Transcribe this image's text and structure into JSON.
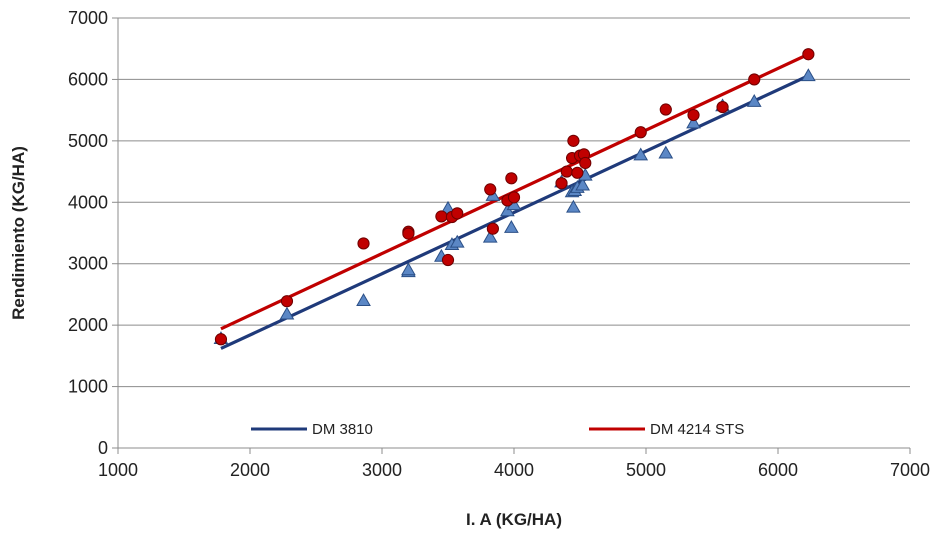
{
  "chart_data": {
    "type": "scatter",
    "title": "",
    "xlabel": "I. A (KG/HA)",
    "ylabel": "Rendimiento (KG/HA)",
    "xlim": [
      1000,
      7000
    ],
    "ylim": [
      0,
      7000
    ],
    "x_ticks": [
      "1000",
      "2000",
      "3000",
      "4000",
      "5000",
      "6000",
      "7000"
    ],
    "y_ticks": [
      "0",
      "1000",
      "2000",
      "3000",
      "4000",
      "5000",
      "6000",
      "7000"
    ],
    "grid": "horizontal",
    "legend_placement": "bottom",
    "series": [
      {
        "name": "DM 3810",
        "marker": "triangle",
        "marker_color": "#5b87c5",
        "line_color": "#1f3a7a",
        "trendline": {
          "x": [
            1780,
            6230
          ],
          "y": [
            1620,
            6060
          ]
        },
        "points": [
          [
            1780,
            1780
          ],
          [
            2280,
            2180
          ],
          [
            2860,
            2400
          ],
          [
            3200,
            2870
          ],
          [
            3200,
            2900
          ],
          [
            3450,
            3120
          ],
          [
            3500,
            3900
          ],
          [
            3530,
            3310
          ],
          [
            3570,
            3350
          ],
          [
            3820,
            3430
          ],
          [
            3840,
            4110
          ],
          [
            3950,
            3860
          ],
          [
            3980,
            3590
          ],
          [
            4000,
            3960
          ],
          [
            4360,
            4330
          ],
          [
            4440,
            4170
          ],
          [
            4450,
            3920
          ],
          [
            4460,
            4190
          ],
          [
            4480,
            4240
          ],
          [
            4520,
            4280
          ],
          [
            4540,
            4440
          ],
          [
            4960,
            4770
          ],
          [
            5150,
            4800
          ],
          [
            5360,
            5290
          ],
          [
            5580,
            5570
          ],
          [
            5820,
            5640
          ],
          [
            6230,
            6060
          ]
        ]
      },
      {
        "name": "DM 4214 STS",
        "marker": "circle",
        "marker_color": "#c00000",
        "line_color": "#c00000",
        "trendline": {
          "x": [
            1780,
            6230
          ],
          "y": [
            1940,
            6410
          ]
        },
        "points": [
          [
            1780,
            1770
          ],
          [
            2280,
            2390
          ],
          [
            2860,
            3330
          ],
          [
            3200,
            3520
          ],
          [
            3200,
            3490
          ],
          [
            3450,
            3770
          ],
          [
            3500,
            3060
          ],
          [
            3530,
            3760
          ],
          [
            3570,
            3820
          ],
          [
            3820,
            4210
          ],
          [
            3840,
            3570
          ],
          [
            3950,
            4030
          ],
          [
            3980,
            4390
          ],
          [
            4000,
            4080
          ],
          [
            4360,
            4310
          ],
          [
            4400,
            4500
          ],
          [
            4440,
            4720
          ],
          [
            4450,
            5000
          ],
          [
            4480,
            4480
          ],
          [
            4500,
            4760
          ],
          [
            4530,
            4780
          ],
          [
            4540,
            4640
          ],
          [
            4960,
            5140
          ],
          [
            5150,
            5510
          ],
          [
            5360,
            5420
          ],
          [
            5580,
            5550
          ],
          [
            5820,
            6000
          ],
          [
            6230,
            6410
          ]
        ]
      }
    ]
  }
}
